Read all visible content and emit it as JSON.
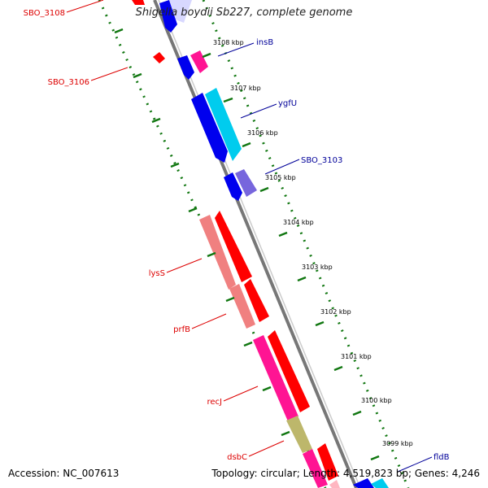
{
  "title": "Shigella boydii Sb227, complete genome",
  "footer": {
    "accession": "Accession: NC_007613",
    "topology": "Topology: circular; Length: 4,519,823 bp; Genes: 4,246"
  },
  "colors": {
    "red_label": "#dd0000",
    "blue_label": "#000099",
    "backbone": "#888888",
    "tick_green": "#117711",
    "gene_red": "#ff0000",
    "gene_salmon": "#f08080",
    "gene_magenta": "#ff1493",
    "gene_blue": "#0000ee",
    "gene_cyan": "#00ccee",
    "gene_violet": "#7766dd",
    "gene_olive": "#bdb76b",
    "gene_pink": "#ffb6c1"
  },
  "ticks": [
    {
      "label": "3108 kbp"
    },
    {
      "label": "3107 kbp"
    },
    {
      "label": "3106 kbp"
    },
    {
      "label": "3105 kbp"
    },
    {
      "label": "3104 kbp"
    },
    {
      "label": "3103 kbp"
    },
    {
      "label": "3102 kbp"
    },
    {
      "label": "3101 kbp"
    },
    {
      "label": "3100 kbp"
    },
    {
      "label": "3099 kbp"
    }
  ],
  "genes_left": [
    {
      "label": "SBO_3108"
    },
    {
      "label": "SBO_3106"
    },
    {
      "label": "lysS"
    },
    {
      "label": "prfB"
    },
    {
      "label": "recJ"
    },
    {
      "label": "dsbC"
    }
  ],
  "genes_right": [
    {
      "label": "insB"
    },
    {
      "label": "ygfU"
    },
    {
      "label": "SBO_3103"
    },
    {
      "label": "fldB"
    }
  ]
}
